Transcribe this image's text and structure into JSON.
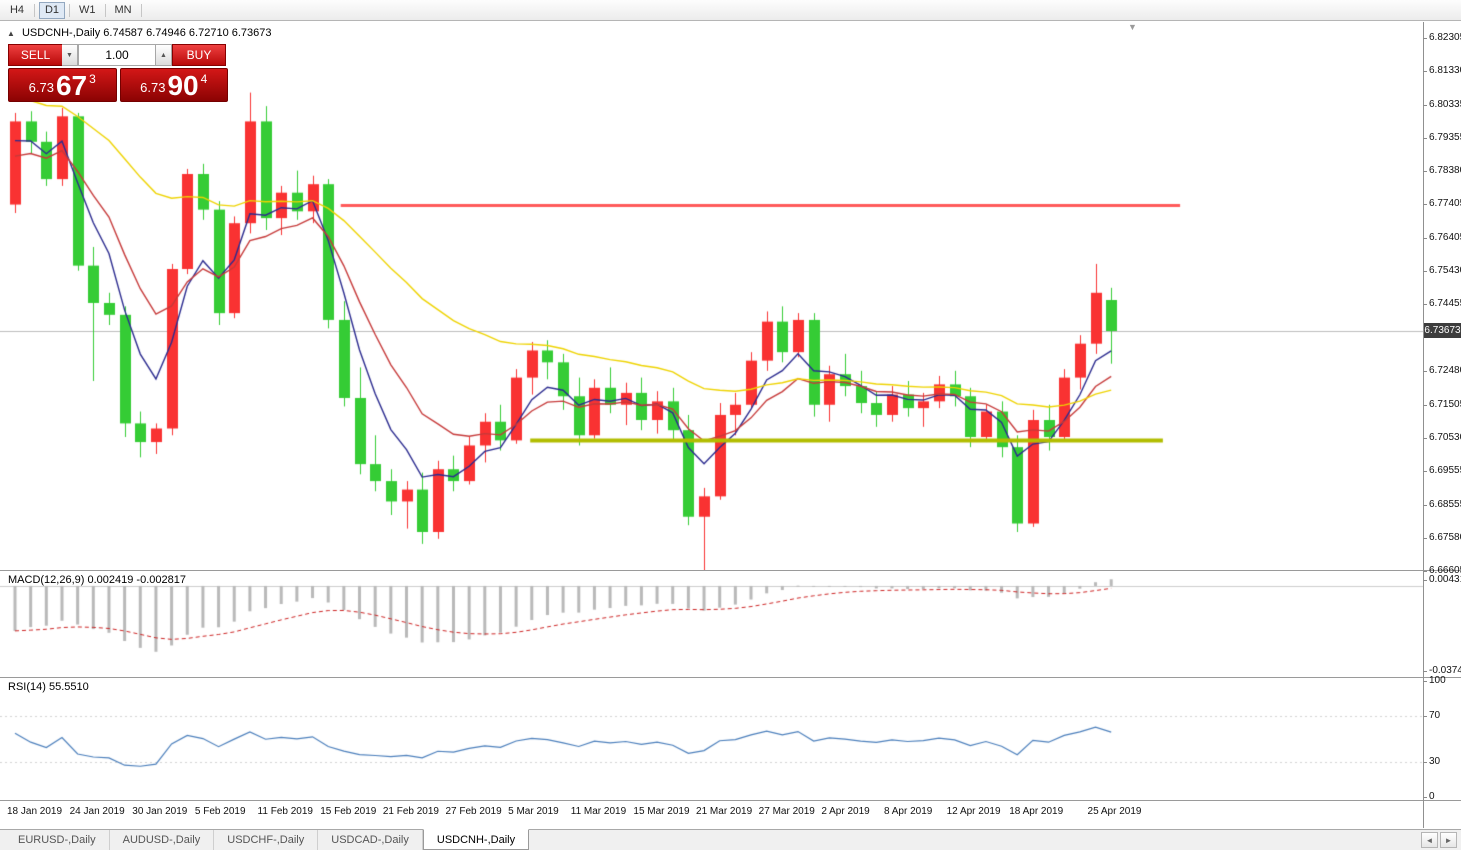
{
  "toolbar": {
    "buttons": [
      "H4",
      "D1",
      "W1",
      "MN"
    ],
    "active": "D1"
  },
  "chart": {
    "symbol_period": "USDCNH-,Daily",
    "ohlc_line": "6.74587 6.74946 6.72710 6.73673",
    "current_price": "6.73673",
    "price_scale": [
      "6.82305",
      "6.81330",
      "6.80335",
      "6.79355",
      "6.78380",
      "6.77405",
      "6.76405",
      "6.75430",
      "6.74455",
      "6.72480",
      "6.71505",
      "6.70530",
      "6.69555",
      "6.68555",
      "6.67580",
      "6.66605"
    ],
    "colors": {
      "bull": "#f93232",
      "bear": "#35cc35",
      "resistance": "#ff5a5a",
      "support": "#b2bd00",
      "current_price_line": "#bdbdbd",
      "badge_bg": "#3d3d3d"
    }
  },
  "trade_panel": {
    "sell_label": "SELL",
    "buy_label": "BUY",
    "volume": "1.00",
    "sell_price": {
      "small": "6.73",
      "big": "67",
      "sup": "3"
    },
    "buy_price": {
      "small": "6.73",
      "big": "90",
      "sup": "4"
    }
  },
  "icons": {
    "collapse": "▲",
    "volume_down": "▼",
    "volume_up": "▲",
    "shift_marker": "▼",
    "tab_scroll_left": "◄",
    "tab_scroll_right": "►"
  },
  "tabs": {
    "items": [
      "EURUSD-,Daily",
      "AUDUSD-,Daily",
      "USDCHF-,Daily",
      "USDCAD-,Daily",
      "USDCNH-,Daily"
    ],
    "active_index": 4
  },
  "chart_data": {
    "type": "candlestick",
    "symbol": "USDCNH-",
    "timeframe": "Daily",
    "title": "USDCNH-,Daily",
    "price_axis": {
      "min": 6.6663,
      "max": 6.8278
    },
    "x_labels": [
      {
        "index": 0,
        "label": "18 Jan 2019"
      },
      {
        "index": 4,
        "label": "24 Jan 2019"
      },
      {
        "index": 8,
        "label": "30 Jan 2019"
      },
      {
        "index": 12,
        "label": "5 Feb 2019"
      },
      {
        "index": 16,
        "label": "11 Feb 2019"
      },
      {
        "index": 20,
        "label": "15 Feb 2019"
      },
      {
        "index": 24,
        "label": "21 Feb 2019"
      },
      {
        "index": 28,
        "label": "27 Feb 2019"
      },
      {
        "index": 32,
        "label": "5 Mar 2019"
      },
      {
        "index": 36,
        "label": "11 Mar 2019"
      },
      {
        "index": 40,
        "label": "15 Mar 2019"
      },
      {
        "index": 44,
        "label": "21 Mar 2019"
      },
      {
        "index": 48,
        "label": "27 Mar 2019"
      },
      {
        "index": 52,
        "label": "2 Apr 2019"
      },
      {
        "index": 56,
        "label": "8 Apr 2019"
      },
      {
        "index": 60,
        "label": "12 Apr 2019"
      },
      {
        "index": 64,
        "label": "18 Apr 2019"
      },
      {
        "index": 69,
        "label": "25 Apr 2019"
      }
    ],
    "candles": [
      [
        "2019-01-18",
        6.774,
        6.801,
        6.7715,
        6.7985
      ],
      [
        "2019-01-21",
        6.7985,
        6.8015,
        6.789,
        6.7925
      ],
      [
        "2019-01-22",
        6.7925,
        6.7955,
        6.7795,
        6.7815
      ],
      [
        "2019-01-23",
        6.7815,
        6.8025,
        6.7795,
        6.8
      ],
      [
        "2019-01-24",
        6.8,
        6.801,
        6.7545,
        6.756
      ],
      [
        "2019-01-25",
        6.756,
        6.7615,
        6.722,
        6.745
      ],
      [
        "2019-01-28",
        6.745,
        6.748,
        6.7385,
        6.7415
      ],
      [
        "2019-01-29",
        6.7415,
        6.744,
        6.7055,
        6.7095
      ],
      [
        "2019-01-30",
        6.7095,
        6.713,
        6.6995,
        6.704
      ],
      [
        "2019-01-31",
        6.704,
        6.7095,
        6.7005,
        6.708
      ],
      [
        "2019-02-01",
        6.708,
        6.7565,
        6.706,
        6.755
      ],
      [
        "2019-02-04",
        6.755,
        6.7845,
        6.7535,
        6.783
      ],
      [
        "2019-02-05",
        6.783,
        6.786,
        6.7695,
        6.7725
      ],
      [
        "2019-02-06",
        6.7725,
        6.775,
        6.7385,
        6.742
      ],
      [
        "2019-02-07",
        6.742,
        6.7705,
        6.7405,
        6.7685
      ],
      [
        "2019-02-08",
        6.7685,
        6.807,
        6.7655,
        6.7985
      ],
      [
        "2019-02-11",
        6.7985,
        6.803,
        6.7665,
        6.77
      ],
      [
        "2019-02-12",
        6.77,
        6.7795,
        6.765,
        6.7775
      ],
      [
        "2019-02-13",
        6.7775,
        6.784,
        6.7695,
        6.772
      ],
      [
        "2019-02-14",
        6.772,
        6.7825,
        6.7685,
        6.78
      ],
      [
        "2019-02-15",
        6.78,
        6.7815,
        6.7375,
        6.74
      ],
      [
        "2019-02-18",
        6.74,
        6.7455,
        6.7145,
        6.717
      ],
      [
        "2019-02-19",
        6.717,
        6.726,
        6.6945,
        6.6975
      ],
      [
        "2019-02-20",
        6.6975,
        6.706,
        6.6895,
        6.6925
      ],
      [
        "2019-02-21",
        6.6925,
        6.696,
        6.6825,
        6.6865
      ],
      [
        "2019-02-22",
        6.6865,
        6.6925,
        6.6785,
        6.69
      ],
      [
        "2019-02-25",
        6.69,
        6.695,
        6.674,
        6.6775
      ],
      [
        "2019-02-26",
        6.6775,
        6.6985,
        6.6755,
        6.696
      ],
      [
        "2019-02-27",
        6.696,
        6.7,
        6.6895,
        6.6925
      ],
      [
        "2019-02-28",
        6.6925,
        6.7055,
        6.6915,
        6.703
      ],
      [
        "2019-03-01",
        6.703,
        6.7125,
        6.698,
        6.71
      ],
      [
        "2019-03-04",
        6.71,
        6.715,
        6.7015,
        6.7045
      ],
      [
        "2019-03-05",
        6.7045,
        6.7255,
        6.7035,
        6.723
      ],
      [
        "2019-03-06",
        6.723,
        6.7335,
        6.718,
        6.731
      ],
      [
        "2019-03-07",
        6.731,
        6.734,
        6.7225,
        6.7275
      ],
      [
        "2019-03-08",
        6.7275,
        6.73,
        6.7135,
        6.7175
      ],
      [
        "2019-03-11",
        6.7175,
        6.723,
        6.703,
        6.706
      ],
      [
        "2019-03-12",
        6.706,
        6.7225,
        6.705,
        6.72
      ],
      [
        "2019-03-13",
        6.72,
        6.726,
        6.7125,
        6.715
      ],
      [
        "2019-03-14",
        6.715,
        6.7215,
        6.709,
        6.7185
      ],
      [
        "2019-03-15",
        6.7185,
        6.723,
        6.7075,
        6.7105
      ],
      [
        "2019-03-18",
        6.7105,
        6.719,
        6.7065,
        6.716
      ],
      [
        "2019-03-19",
        6.716,
        6.72,
        6.7045,
        6.7075
      ],
      [
        "2019-03-20",
        6.7075,
        6.712,
        6.6795,
        6.682
      ],
      [
        "2019-03-21",
        6.682,
        6.6905,
        6.666,
        6.688
      ],
      [
        "2019-03-22",
        6.688,
        6.7155,
        6.687,
        6.712
      ],
      [
        "2019-03-25",
        6.712,
        6.7185,
        6.706,
        6.715
      ],
      [
        "2019-03-26",
        6.715,
        6.7305,
        6.714,
        6.728
      ],
      [
        "2019-03-27",
        6.728,
        6.7425,
        6.725,
        6.7395
      ],
      [
        "2019-03-28",
        6.7395,
        6.744,
        6.7275,
        6.7305
      ],
      [
        "2019-03-29",
        6.7305,
        6.742,
        6.729,
        6.74
      ],
      [
        "2019-04-01",
        6.74,
        6.742,
        6.7115,
        6.715
      ],
      [
        "2019-04-02",
        6.715,
        6.7265,
        6.71,
        6.724
      ],
      [
        "2019-04-03",
        6.724,
        6.73,
        6.7175,
        6.7205
      ],
      [
        "2019-04-04",
        6.7205,
        6.725,
        6.7125,
        6.7155
      ],
      [
        "2019-04-05",
        6.7155,
        6.719,
        6.7085,
        6.712
      ],
      [
        "2019-04-08",
        6.712,
        6.7205,
        6.71,
        6.718
      ],
      [
        "2019-04-09",
        6.718,
        6.722,
        6.7115,
        6.714
      ],
      [
        "2019-04-10",
        6.714,
        6.7185,
        6.7085,
        6.716
      ],
      [
        "2019-04-11",
        6.716,
        6.7235,
        6.714,
        6.721
      ],
      [
        "2019-04-12",
        6.721,
        6.725,
        6.7145,
        6.7175
      ],
      [
        "2019-04-15",
        6.7175,
        6.72,
        6.7025,
        6.7055
      ],
      [
        "2019-04-16",
        6.7055,
        6.715,
        6.704,
        6.713
      ],
      [
        "2019-04-17",
        6.713,
        6.716,
        6.6995,
        6.7025
      ],
      [
        "2019-04-18",
        6.7025,
        6.706,
        6.6775,
        6.68
      ],
      [
        "2019-04-19",
        6.68,
        6.7135,
        6.679,
        6.7105
      ],
      [
        "2019-04-22",
        6.7105,
        6.715,
        6.7015,
        6.7055
      ],
      [
        "2019-04-23",
        6.7055,
        6.7255,
        6.7045,
        6.723
      ],
      [
        "2019-04-24",
        6.723,
        6.7355,
        6.7195,
        6.733
      ],
      [
        "2019-04-25",
        6.733,
        6.7565,
        6.73,
        6.748
      ],
      [
        "2019-04-26",
        6.74587,
        6.74946,
        6.7271,
        6.73673
      ]
    ],
    "overlays": {
      "resistance_line": {
        "price": 6.774,
        "start_index": 20.8,
        "end_index": 74.4
      },
      "support_line": {
        "price": 6.7045,
        "start_index": 32.9,
        "end_index": 73.3
      },
      "moving_averages": [
        {
          "period": 5,
          "color": "#2b2b8f",
          "seed": 6.79
        },
        {
          "period": 10,
          "color": "#c63a3a",
          "seed": 6.786
        },
        {
          "period": 30,
          "color": "#eed300",
          "seed": 6.806
        }
      ]
    },
    "indicators": {
      "macd": {
        "label": "MACD(12,26,9)",
        "values_text": "0.002419 -0.002817",
        "params": [
          12,
          26,
          9
        ],
        "scale_max": 0.004319,
        "scale_min": -0.03746,
        "scale_max_label": "0.004319",
        "scale_min_label": "-0.037460",
        "histogram_color": "#b9b9b9",
        "signal_color": "#cc2222",
        "warmup_offset_fast": -0.01,
        "warmup_offset_slow": 0.012
      },
      "rsi": {
        "label": "RSI(14)",
        "value_text": "55.5510",
        "period": 14,
        "color": "#4a7ebb",
        "levels": [
          100,
          70,
          30,
          0
        ]
      }
    }
  }
}
